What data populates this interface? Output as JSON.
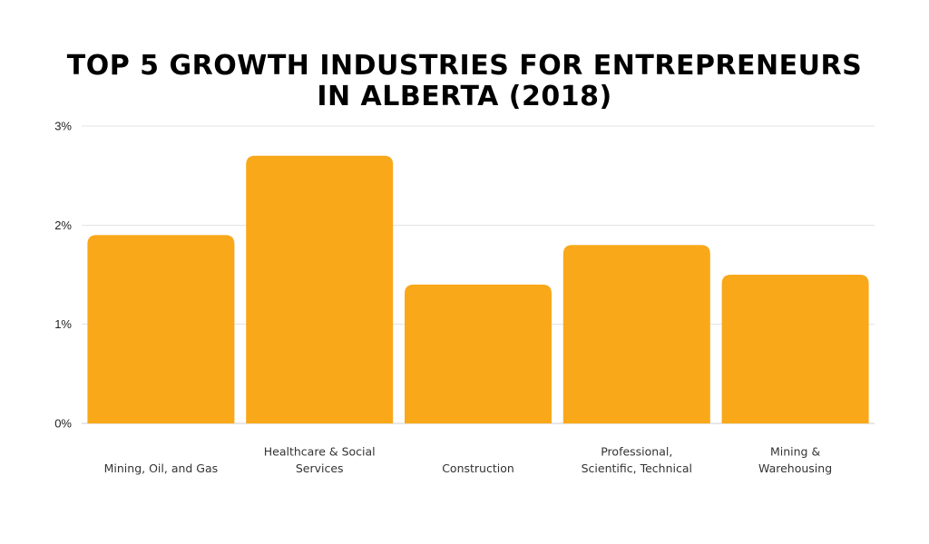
{
  "chart_data": {
    "type": "bar",
    "title_lines": [
      "TOP 5 GROWTH INDUSTRIES FOR ENTREPRENEURS",
      "IN ALBERTA (2018)"
    ],
    "categories": [
      [
        "Mining, Oil, and Gas"
      ],
      [
        "Healthcare & Social",
        "Services"
      ],
      [
        "Construction"
      ],
      [
        "Professional,",
        "Scientific, Technical"
      ],
      [
        "Mining &",
        "Warehousing"
      ]
    ],
    "values": [
      1.9,
      2.7,
      1.4,
      1.8,
      1.5
    ],
    "ylim": [
      0,
      3
    ],
    "yticks": [
      0,
      1,
      2,
      3
    ],
    "ytick_labels": [
      "0%",
      "1%",
      "2%",
      "3%"
    ],
    "bar_color": "#F9A81A",
    "grid_color": "#e3e3e3",
    "grid": true
  }
}
